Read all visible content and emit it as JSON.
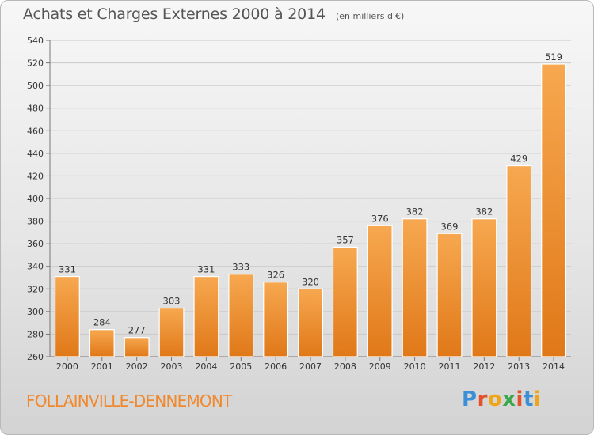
{
  "header": {
    "title": "Achats et Charges Externes 2000 à 2014",
    "subtitle": "(en milliers d'€)"
  },
  "footer": {
    "commune": "FOLLAINVILLE-DENNEMONT",
    "logo": [
      "P",
      "r",
      "o",
      "x",
      "i",
      "t",
      "i"
    ]
  },
  "colors": {
    "bar_top": "#f7a850",
    "bar_bottom": "#e07818",
    "grid": "#c8c8c8",
    "title": "#555555",
    "commune": "#f0892e",
    "logo": [
      "#3a8fd6",
      "#e4502a",
      "#f0a418",
      "#3aa84a",
      "#e4502a",
      "#3a8fd6",
      "#f0a418"
    ]
  },
  "chart_data": {
    "type": "bar",
    "title": "Achats et Charges Externes 2000 à 2014",
    "subtitle": "(en milliers d'€)",
    "xlabel": "",
    "ylabel": "",
    "categories": [
      "2000",
      "2001",
      "2002",
      "2003",
      "2004",
      "2005",
      "2006",
      "2007",
      "2008",
      "2009",
      "2010",
      "2011",
      "2012",
      "2013",
      "2014"
    ],
    "values": [
      331,
      284,
      277,
      303,
      331,
      333,
      326,
      320,
      357,
      376,
      382,
      369,
      382,
      429,
      519
    ],
    "ylim": [
      260,
      540
    ],
    "yticks": [
      260,
      280,
      300,
      320,
      340,
      360,
      380,
      400,
      420,
      440,
      460,
      480,
      500,
      520,
      540
    ],
    "grid": "horizontal",
    "data_labels": true
  }
}
